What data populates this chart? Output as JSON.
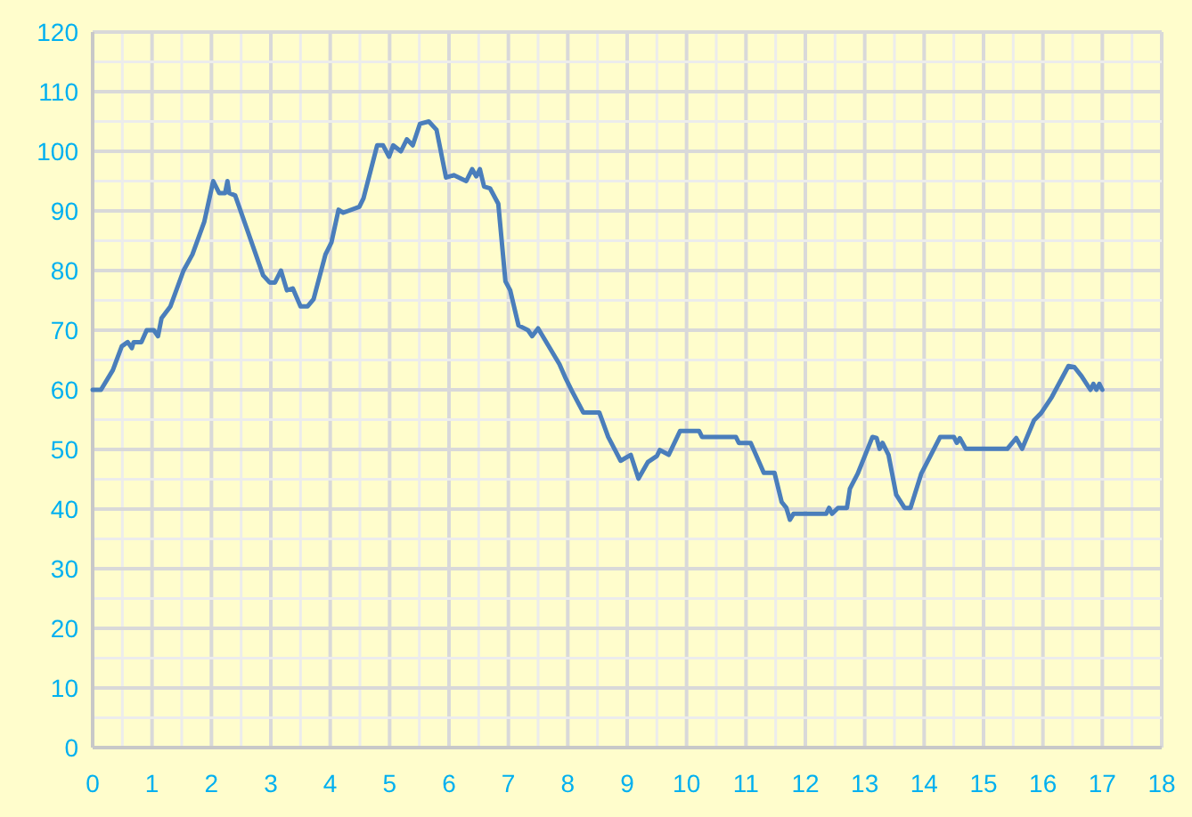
{
  "chart_data": {
    "type": "line",
    "xlim": [
      0,
      18
    ],
    "ylim": [
      0,
      120
    ],
    "xticks": [
      0,
      {
        "value": 0.5,
        "label": null
      },
      1,
      {
        "value": 1.5,
        "label": null
      },
      2,
      {
        "value": 2.5,
        "label": null
      },
      3,
      {
        "value": 3.5,
        "label": null
      },
      4,
      {
        "value": 4.5,
        "label": null
      },
      5,
      {
        "value": 5.5,
        "label": null
      },
      6,
      {
        "value": 6.5,
        "label": null
      },
      7,
      {
        "value": 7.5,
        "label": null
      },
      8,
      {
        "value": 8.5,
        "label": null
      },
      9,
      {
        "value": 9.5,
        "label": null
      },
      10,
      {
        "value": 10.5,
        "label": null
      },
      11,
      {
        "value": 11.5,
        "label": null
      },
      12,
      {
        "value": 12.5,
        "label": null
      },
      13,
      {
        "value": 13.5,
        "label": null
      },
      14,
      {
        "value": 14.5,
        "label": null
      },
      15,
      {
        "value": 15.5,
        "label": null
      },
      16,
      {
        "value": 16.5,
        "label": null
      },
      17,
      {
        "value": 17.5,
        "label": null
      },
      18
    ],
    "yticks": [
      0,
      {
        "value": 5,
        "label": null
      },
      10,
      {
        "value": 15,
        "label": null
      },
      20,
      {
        "value": 25,
        "label": null
      },
      30,
      {
        "value": 35,
        "label": null
      },
      40,
      {
        "value": 45,
        "label": null
      },
      50,
      {
        "value": 55,
        "label": null
      },
      60,
      {
        "value": 65,
        "label": null
      },
      70,
      {
        "value": 75,
        "label": null
      },
      80,
      {
        "value": 85,
        "label": null
      },
      90,
      {
        "value": 95,
        "label": null
      },
      100,
      {
        "value": 105,
        "label": null
      },
      110,
      {
        "value": 115,
        "label": null
      },
      120
    ],
    "grid": true,
    "marker": "none",
    "line_style": "solid",
    "series": [
      {
        "color": "#4a7ebb",
        "x": [
          0,
          0.14,
          0.34,
          0.49,
          0.59,
          0.66,
          0.69,
          0.82,
          0.91,
          1.03,
          1.1,
          1.16,
          1.31,
          1.53,
          1.68,
          1.88,
          2.03,
          2.13,
          2.23,
          2.27,
          2.3,
          2.4,
          2.87,
          2.98,
          3.07,
          3.17,
          3.27,
          3.37,
          3.5,
          3.62,
          3.72,
          3.92,
          4.02,
          4.14,
          4.22,
          4.49,
          4.56,
          4.79,
          4.89,
          4.99,
          5.06,
          5.19,
          5.29,
          5.39,
          5.51,
          5.66,
          5.79,
          5.95,
          6.08,
          6.29,
          6.39,
          6.46,
          6.52,
          6.59,
          6.69,
          6.83,
          6.95,
          7.03,
          7.17,
          7.33,
          7.4,
          7.5,
          7.86,
          7.97,
          8.07,
          8.26,
          8.53,
          8.68,
          8.89,
          9.06,
          9.19,
          9.35,
          9.5,
          9.55,
          9.7,
          9.89,
          10.21,
          10.26,
          10.83,
          10.88,
          11.08,
          11.3,
          11.48,
          11.6,
          11.68,
          11.74,
          11.8,
          12.35,
          12.4,
          12.45,
          12.55,
          12.7,
          12.75,
          12.88,
          13.13,
          13.2,
          13.25,
          13.3,
          13.4,
          13.53,
          13.67,
          13.77,
          13.95,
          14.27,
          14.5,
          14.55,
          14.6,
          14.7,
          15.4,
          15.55,
          15.65,
          15.85,
          15.97,
          16.15,
          16.43,
          16.53,
          16.65,
          16.8,
          16.85,
          16.9,
          16.95,
          17.0
        ],
        "values": [
          60,
          60,
          63.3,
          67.3,
          68,
          67,
          68,
          68,
          70,
          70,
          69,
          72,
          74,
          80,
          82.7,
          88.2,
          95,
          93,
          93,
          95,
          93,
          92.6,
          79.2,
          78,
          78,
          80,
          76.7,
          77,
          74,
          74,
          75.2,
          82.7,
          84.7,
          90.2,
          89.7,
          90.7,
          92.1,
          101,
          101,
          99.1,
          101,
          100,
          102,
          101,
          104.6,
          105,
          103.6,
          95.6,
          96,
          95,
          97,
          95.8,
          97,
          94.1,
          93.8,
          91.2,
          78.2,
          76.7,
          70.8,
          70,
          69,
          70.3,
          64.3,
          61.8,
          59.8,
          56.2,
          56.2,
          52.1,
          48.1,
          49.1,
          45.1,
          47.9,
          48.9,
          49.9,
          49.1,
          53.1,
          53.1,
          52.1,
          52.1,
          51.1,
          51.1,
          46.1,
          46.1,
          41.2,
          40.2,
          38.2,
          39.2,
          39.2,
          40.2,
          39.2,
          40.2,
          40.2,
          43.4,
          45.9,
          52.1,
          51.9,
          50.1,
          51.1,
          49.1,
          42.4,
          40.2,
          40.2,
          45.9,
          52.1,
          52.1,
          51.1,
          51.9,
          50.1,
          50.1,
          51.9,
          50.1,
          54.9,
          56.1,
          58.8,
          64,
          63.8,
          62.3,
          60,
          61,
          60,
          61,
          60
        ]
      }
    ]
  }
}
